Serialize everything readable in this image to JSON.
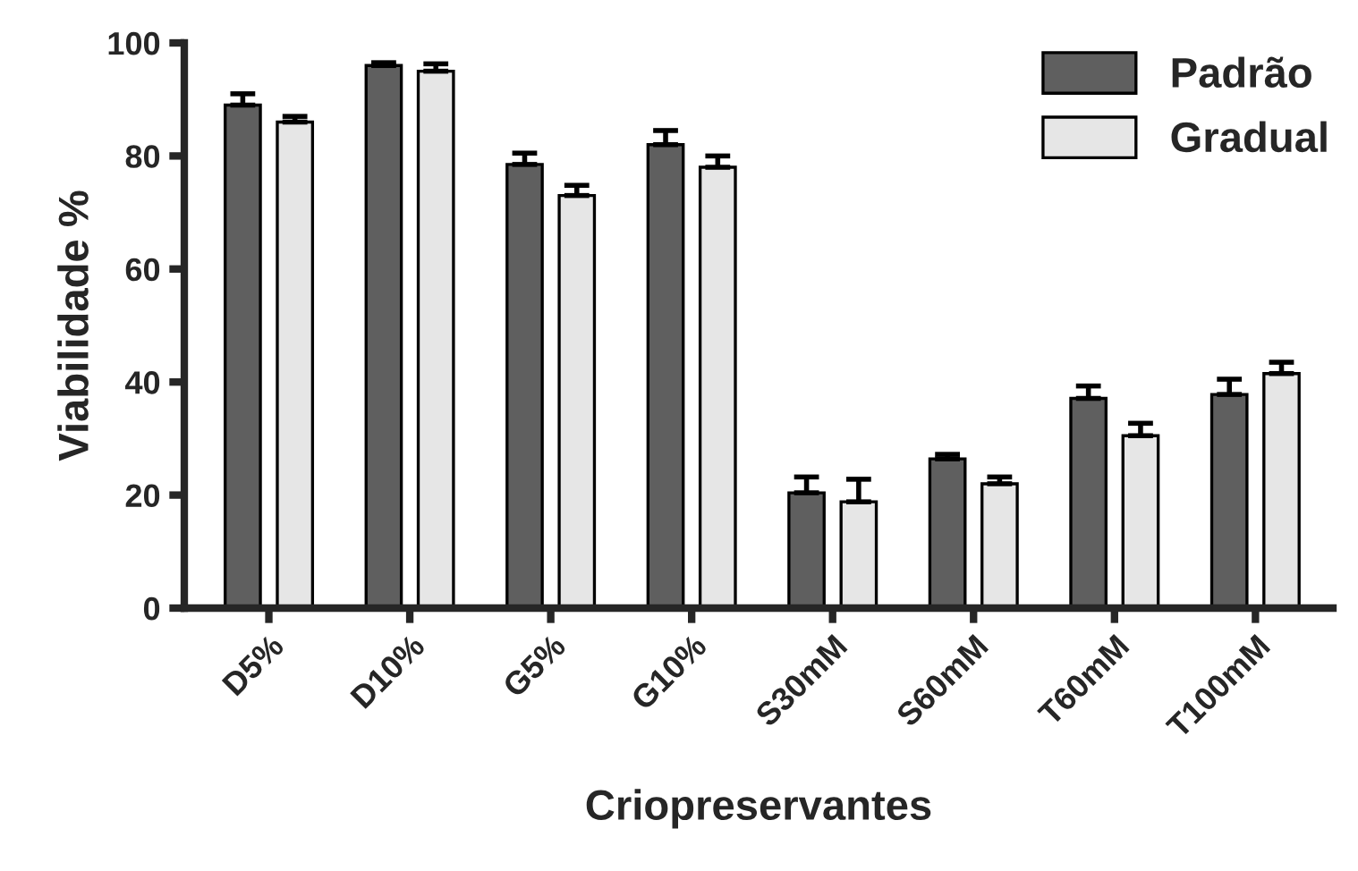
{
  "chart_data": {
    "type": "bar",
    "xlabel": "Criopreservantes",
    "ylabel": "Viabilidade %",
    "categories": [
      "D5%",
      "D10%",
      "G5%",
      "G10%",
      "S30mM",
      "S60mM",
      "T60mM",
      "T100mM"
    ],
    "series": [
      {
        "name": "Padrão",
        "color": "#5f5f5f",
        "values": [
          89,
          96,
          78.5,
          82,
          20.4,
          26.4,
          37.1,
          37.8
        ],
        "errors": [
          [
            89,
            91
          ],
          [
            96,
            96.5
          ],
          [
            78.5,
            80.5
          ],
          [
            82,
            84.5
          ],
          [
            20.4,
            23.2
          ],
          [
            26.4,
            27.2
          ],
          [
            37.1,
            39.3
          ],
          [
            37.8,
            40.5
          ]
        ]
      },
      {
        "name": "Gradual",
        "color": "#e6e6e6",
        "values": [
          86,
          95,
          73,
          78,
          18.8,
          22,
          30.5,
          41.5
        ],
        "errors": [
          [
            86,
            87
          ],
          [
            95,
            96.3
          ],
          [
            73,
            74.8
          ],
          [
            78,
            80
          ],
          [
            18.8,
            22.8
          ],
          [
            22,
            23.2
          ],
          [
            30.5,
            32.7
          ],
          [
            41.5,
            43.5
          ]
        ]
      }
    ],
    "ylim": [
      0,
      100
    ],
    "yticks": [
      0,
      20,
      40,
      60,
      80,
      100
    ],
    "legend": "top right",
    "grid": false
  }
}
